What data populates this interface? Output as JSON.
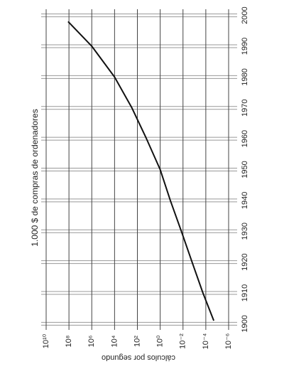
{
  "chart_data": {
    "type": "line",
    "title": "1.000 $ de compras de ordenadores",
    "y_label": "cálculos por segundo",
    "x": [
      1901,
      1910,
      1920,
      1930,
      1940,
      1950,
      1960,
      1970,
      1980,
      1990,
      1998
    ],
    "series": [
      {
        "name": "1.000 $ de compras de ordenadores",
        "color": "#111111",
        "values": [
          2e-05,
          0.00018,
          0.0016,
          0.014,
          0.13,
          1,
          16,
          300,
          10000,
          1000000,
          120000000
        ]
      }
    ],
    "xlim": [
      1898,
      2002
    ],
    "xticks": [
      1900,
      1910,
      1920,
      1930,
      1940,
      1950,
      1960,
      1970,
      1980,
      1990,
      2000
    ],
    "ylim": [
      10000000000,
      1e-06
    ],
    "yticks": [
      {
        "value": 10000000000,
        "label": "10¹⁰"
      },
      {
        "value": 100000000,
        "label": "10⁸"
      },
      {
        "value": 1000000,
        "label": "10⁶"
      },
      {
        "value": 10000,
        "label": "10⁴"
      },
      {
        "value": 100,
        "label": "10²"
      },
      {
        "value": 1,
        "label": "10⁰"
      },
      {
        "value": 0.01,
        "label": "10⁻²"
      },
      {
        "value": 0.0001,
        "label": "10⁻⁴"
      },
      {
        "value": 1e-06,
        "label": "10⁻⁶"
      }
    ],
    "log_scale": true,
    "grid": true
  }
}
